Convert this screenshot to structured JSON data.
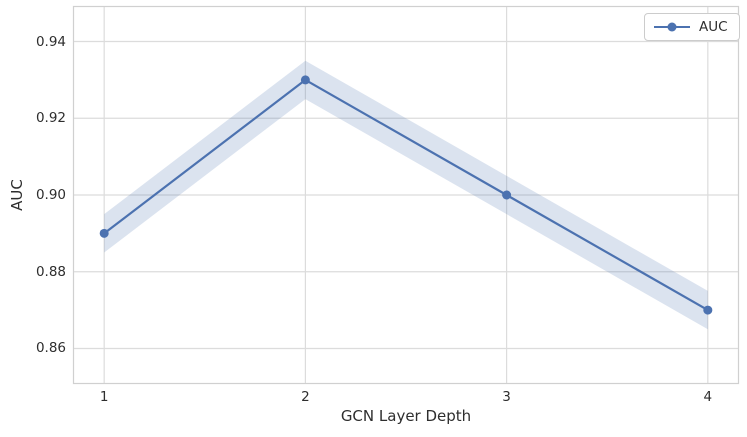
{
  "chart_data": {
    "type": "line",
    "title": "",
    "xlabel": "GCN Layer Depth",
    "ylabel": "AUC",
    "x": [
      1,
      2,
      3,
      4
    ],
    "series": [
      {
        "name": "AUC",
        "values": [
          0.89,
          0.93,
          0.9,
          0.87
        ],
        "band_halfwidth": 0.005,
        "color": "#4c72b0",
        "marker": "circle"
      }
    ],
    "xticks": [
      1,
      2,
      3,
      4
    ],
    "yticks": [
      0.86,
      0.88,
      0.9,
      0.92,
      0.94
    ],
    "xlim": [
      0.85,
      4.15
    ],
    "ylim": [
      0.851,
      0.949
    ],
    "grid": true,
    "legend": {
      "position": "upper right",
      "entries": [
        "AUC"
      ]
    }
  },
  "styles": {
    "background": "#ffffff",
    "line_color": "#4c72b0",
    "band_color": "#4c72b0",
    "band_opacity": 0.2,
    "grid_color": "#dcdcdc",
    "spine_color": "#d0d0d0",
    "text_color": "#2e2e2e",
    "legend_border": "#cccccc"
  }
}
